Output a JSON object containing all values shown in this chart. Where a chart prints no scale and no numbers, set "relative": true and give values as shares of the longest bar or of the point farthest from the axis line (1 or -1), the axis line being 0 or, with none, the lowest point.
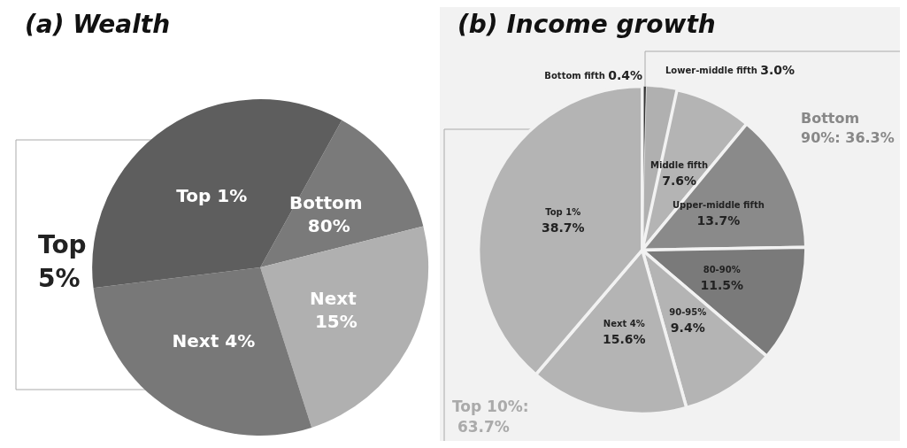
{
  "chart_data": [
    {
      "type": "pie",
      "title": "(a) Wealth",
      "relative": true,
      "categories": [
        "Bottom 80%",
        "Next 15%",
        "Next 4%",
        "Top 1%"
      ],
      "values": [
        13,
        24,
        28,
        35
      ],
      "colors": [
        "#7a7a7a",
        "#b0b0b0",
        "#787878",
        "#5e5e5e"
      ],
      "annotations": [
        "Top 5%"
      ]
    },
    {
      "type": "pie",
      "title": "(b) Income growth",
      "data_labels": true,
      "categories": [
        "Bottom fifth",
        "Lower-middle fifth",
        "Middle fifth",
        "Upper-middle fifth",
        "80-90%",
        "90-95%",
        "Next 4%",
        "Top 1%"
      ],
      "values": [
        0.4,
        3.0,
        7.6,
        13.7,
        11.5,
        9.4,
        15.6,
        38.7
      ],
      "value_labels": [
        "0.4%",
        "3.0%",
        "7.6%",
        "13.7%",
        "11.5%",
        "9.4%",
        "15.6%",
        "38.7%"
      ],
      "colors": [
        "#333333",
        "#b0b0b0",
        "#b4b4b4",
        "#8a8a8a",
        "#7a7a7a",
        "#b4b4b4",
        "#b4b4b4",
        "#b4b4b4"
      ],
      "annotations": [
        "Bottom 90%: 36.3%",
        "Top 10%: 63.7%"
      ]
    }
  ]
}
